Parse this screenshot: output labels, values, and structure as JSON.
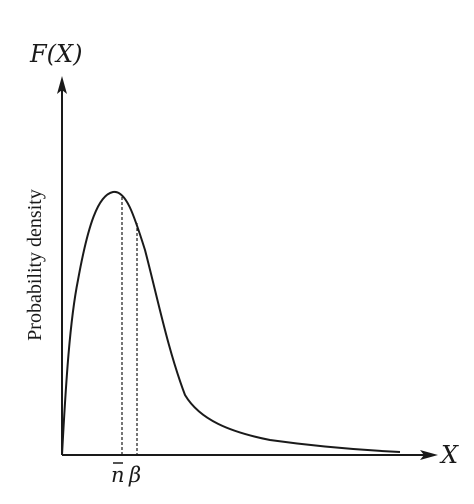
{
  "figure": {
    "y_axis_symbol": "F(X)",
    "x_axis_symbol": "X",
    "y_axis_label": "Probability density",
    "marker_mode": "n",
    "marker_mean": "β",
    "colors": {
      "ink": "#1a1a1a",
      "background": "#ffffff"
    }
  }
}
